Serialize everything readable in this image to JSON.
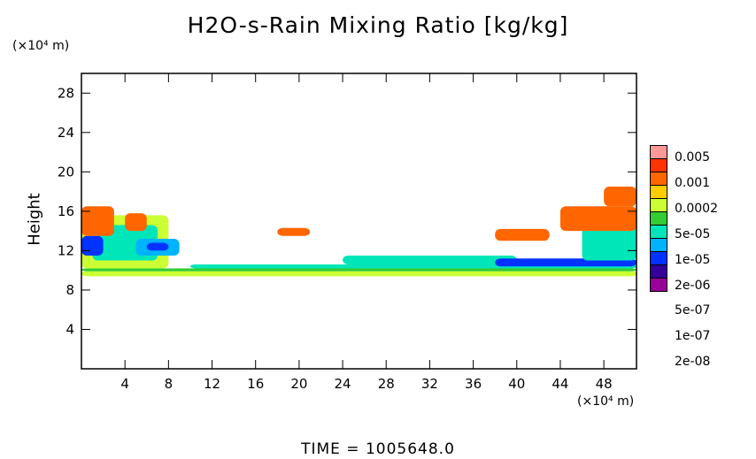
{
  "chart_data": {
    "type": "heatmap",
    "title": "H2O-s-Rain Mixing Ratio [kg/kg]",
    "ylabel": "Height",
    "y_unit": "(×10⁴ m)",
    "x_unit": "(×10⁴ m)",
    "xlim": [
      0,
      51
    ],
    "ylim": [
      0,
      30
    ],
    "x_ticks": [
      4,
      8,
      12,
      16,
      20,
      24,
      28,
      32,
      36,
      40,
      44,
      48
    ],
    "y_ticks": [
      4,
      8,
      12,
      16,
      20,
      24,
      28
    ],
    "colorbar": {
      "levels": [
        "0.005",
        "0.001",
        "0.0002",
        "5e-05",
        "1e-05",
        "2e-06",
        "5e-07",
        "1e-07",
        "2e-08"
      ],
      "colors": [
        "#ff9999",
        "#ff3300",
        "#ff6600",
        "#ffcc00",
        "#ccff33",
        "#33cc33",
        "#00e6b8",
        "#00b3ff",
        "#0033ff",
        "#330099",
        "#990099"
      ]
    },
    "regions": [
      {
        "x": [
          0,
          51
        ],
        "y": [
          9.4,
          9.9
        ],
        "level": 6
      },
      {
        "x": [
          0,
          51
        ],
        "y": [
          9.9,
          10.2
        ],
        "level": 5
      },
      {
        "x": [
          10,
          51
        ],
        "y": [
          10.2,
          10.6
        ],
        "level": 4
      },
      {
        "x": [
          0,
          8
        ],
        "y": [
          10.2,
          15.6
        ],
        "level": 6
      },
      {
        "x": [
          1,
          7
        ],
        "y": [
          11.0,
          14.6
        ],
        "level": 4
      },
      {
        "x": [
          5,
          9
        ],
        "y": [
          11.5,
          13.2
        ],
        "level": 3
      },
      {
        "x": [
          6,
          8
        ],
        "y": [
          12.0,
          12.8
        ],
        "level": 2
      },
      {
        "x": [
          0,
          2
        ],
        "y": [
          11.5,
          13.5
        ],
        "level": 2
      },
      {
        "x": [
          0,
          3
        ],
        "y": [
          13.5,
          16.5
        ],
        "level": 8
      },
      {
        "x": [
          4,
          6
        ],
        "y": [
          14.0,
          15.8
        ],
        "level": 8
      },
      {
        "x": [
          24,
          40
        ],
        "y": [
          10.6,
          11.5
        ],
        "level": 4
      },
      {
        "x": [
          38,
          51
        ],
        "y": [
          10.4,
          11.2
        ],
        "level": 2
      },
      {
        "x": [
          46,
          51
        ],
        "y": [
          11.0,
          14.5
        ],
        "level": 4
      },
      {
        "x": [
          44,
          51
        ],
        "y": [
          14.0,
          16.5
        ],
        "level": 8
      },
      {
        "x": [
          18,
          21
        ],
        "y": [
          13.5,
          14.3
        ],
        "level": 8
      },
      {
        "x": [
          38,
          43
        ],
        "y": [
          13.0,
          14.2
        ],
        "level": 8
      },
      {
        "x": [
          48,
          51
        ],
        "y": [
          16.5,
          18.5
        ],
        "level": 8
      }
    ]
  },
  "footer": {
    "time_label": "TIME  =  1005648.0"
  }
}
